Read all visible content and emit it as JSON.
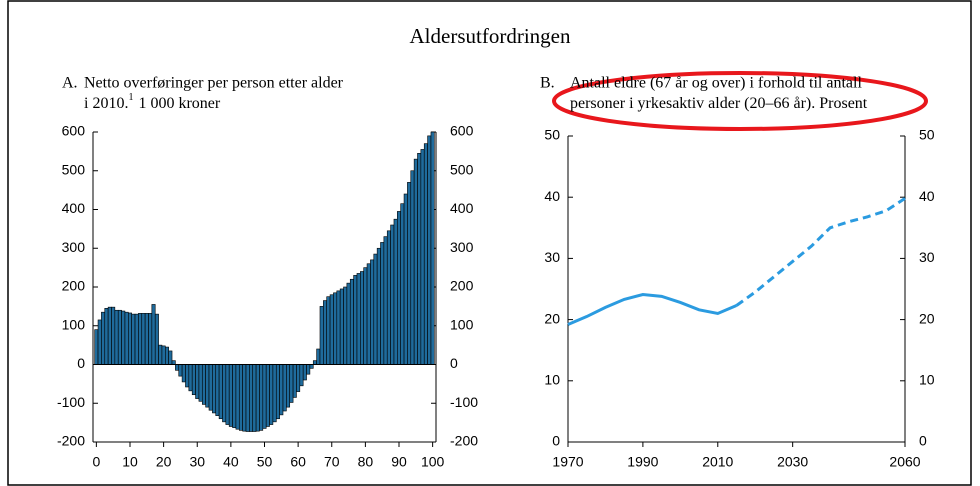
{
  "title": "Aldersutfordringen",
  "chart_data": [
    {
      "type": "bar",
      "label": "A.",
      "title": [
        "Netto overføringer per person etter alder",
        "i 2010."
      ],
      "footnote_mark": "1",
      "unit": "1 000 kroner",
      "x": [
        0,
        1,
        2,
        3,
        4,
        5,
        6,
        7,
        8,
        9,
        10,
        11,
        12,
        13,
        14,
        15,
        16,
        17,
        18,
        19,
        20,
        21,
        22,
        23,
        24,
        25,
        26,
        27,
        28,
        29,
        30,
        31,
        32,
        33,
        34,
        35,
        36,
        37,
        38,
        39,
        40,
        41,
        42,
        43,
        44,
        45,
        46,
        47,
        48,
        49,
        50,
        51,
        52,
        53,
        54,
        55,
        56,
        57,
        58,
        59,
        60,
        61,
        62,
        63,
        64,
        65,
        66,
        67,
        68,
        69,
        70,
        71,
        72,
        73,
        74,
        75,
        76,
        77,
        78,
        79,
        80,
        81,
        82,
        83,
        84,
        85,
        86,
        87,
        88,
        89,
        90,
        91,
        92,
        93,
        94,
        95,
        96,
        97,
        98,
        99,
        100
      ],
      "values": [
        90,
        115,
        135,
        145,
        148,
        148,
        140,
        140,
        138,
        135,
        133,
        130,
        130,
        132,
        132,
        132,
        132,
        155,
        130,
        50,
        48,
        45,
        35,
        10,
        -15,
        -30,
        -45,
        -58,
        -68,
        -78,
        -88,
        -95,
        -103,
        -110,
        -118,
        -125,
        -132,
        -140,
        -148,
        -155,
        -160,
        -163,
        -167,
        -170,
        -172,
        -173,
        -173,
        -173,
        -172,
        -170,
        -165,
        -160,
        -155,
        -148,
        -140,
        -130,
        -120,
        -110,
        -98,
        -85,
        -70,
        -55,
        -40,
        -25,
        -10,
        10,
        40,
        150,
        165,
        175,
        180,
        185,
        190,
        195,
        200,
        210,
        220,
        230,
        235,
        240,
        250,
        260,
        270,
        285,
        300,
        315,
        330,
        345,
        360,
        375,
        395,
        415,
        440,
        470,
        500,
        530,
        545,
        555,
        570,
        590,
        600
      ],
      "color": "#1f6b9c",
      "xlim": [
        -1,
        101
      ],
      "xticks": [
        0,
        10,
        20,
        30,
        40,
        50,
        60,
        70,
        80,
        90,
        100
      ],
      "ylim": [
        -200,
        600
      ],
      "yticks": [
        -200,
        -100,
        0,
        100,
        200,
        300,
        400,
        500,
        600
      ],
      "mirror_y_axis": true
    },
    {
      "type": "line",
      "label": "B.",
      "title": [
        "Antall eldre (67 år og over) i forhold til antall",
        "personer i yrkesaktiv alder (20–66 år). Prosent"
      ],
      "x": [
        1970,
        1975,
        1980,
        1985,
        1990,
        1995,
        2000,
        2005,
        2010,
        2015,
        2020,
        2025,
        2030,
        2035,
        2040,
        2045,
        2050,
        2055,
        2060
      ],
      "series": [
        {
          "color": "#2b9be0",
          "dashed": false,
          "values": [
            19.2,
            20.5,
            22,
            23.3,
            24.1,
            23.8,
            22.8,
            21.6,
            21.0,
            22.3,
            null,
            null,
            null,
            null,
            null,
            null,
            null,
            null,
            null
          ]
        },
        {
          "color": "#2b9be0",
          "dashed": true,
          "values": [
            null,
            null,
            null,
            null,
            null,
            null,
            null,
            null,
            null,
            22.3,
            24.5,
            27,
            29.5,
            32,
            35,
            36,
            36.8,
            37.8,
            39.8
          ]
        }
      ],
      "xlim": [
        1970,
        2060
      ],
      "xticks": [
        1970,
        1990,
        2010,
        2030,
        2060
      ],
      "ylim": [
        0,
        50
      ],
      "yticks": [
        0,
        10,
        20,
        30,
        40,
        50
      ],
      "mirror_y_axis": true
    }
  ]
}
